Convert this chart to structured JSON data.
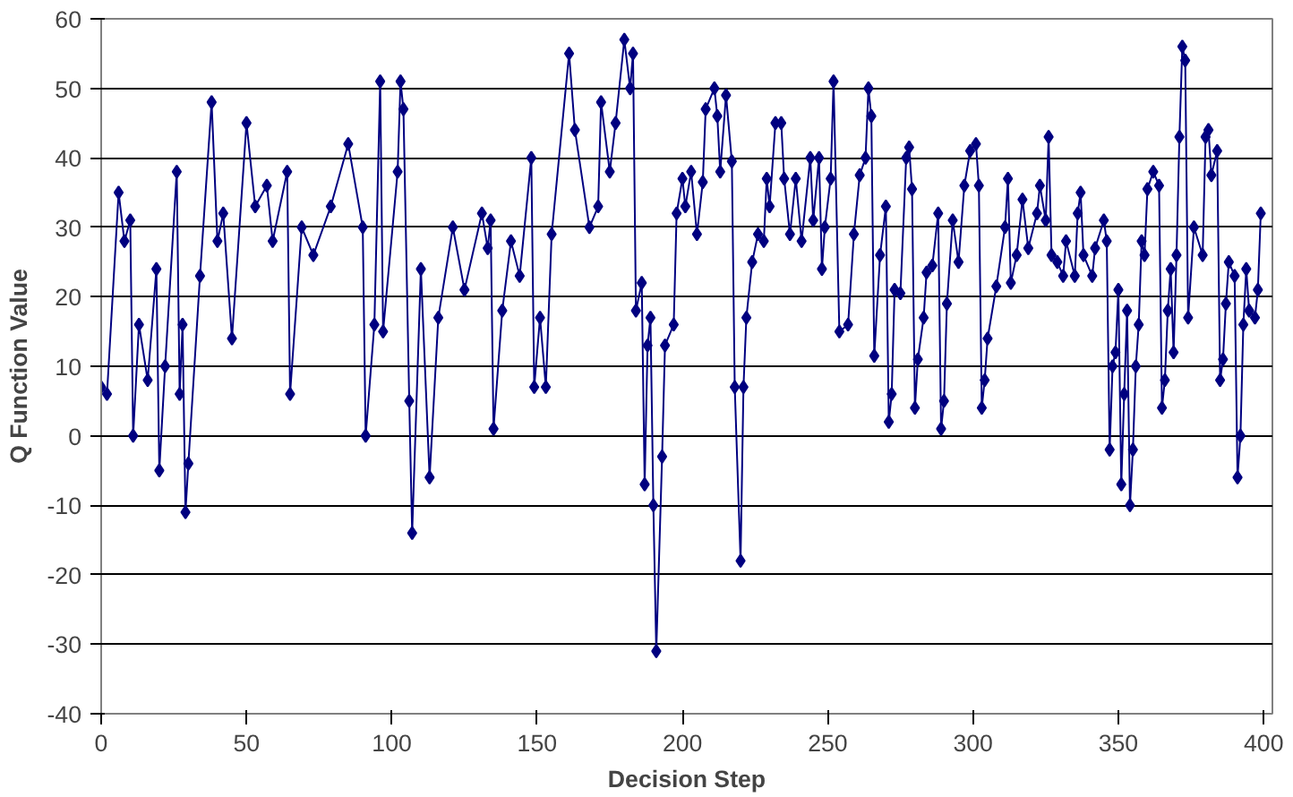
{
  "chart_data": {
    "type": "line",
    "xlabel": "Decision Step",
    "ylabel": "Q Function Value",
    "xlim": [
      0,
      403
    ],
    "ylim": [
      -40,
      60
    ],
    "xticks": [
      0,
      50,
      100,
      150,
      200,
      250,
      300,
      350,
      400
    ],
    "yticks": [
      -40,
      -30,
      -20,
      -10,
      0,
      10,
      20,
      30,
      40,
      50,
      60
    ],
    "grid": "y",
    "marker": "diamond",
    "line_style": "solid",
    "series": [
      {
        "color": "#000080",
        "x": [
          0,
          2,
          6,
          8,
          10,
          11,
          13,
          16,
          19,
          20,
          22,
          26,
          27,
          28,
          29,
          30,
          34,
          38,
          40,
          42,
          45,
          50,
          53,
          57,
          59,
          64,
          65,
          69,
          73,
          79,
          85,
          90,
          91,
          94,
          96,
          97,
          102,
          103,
          104,
          106,
          107,
          110,
          113,
          116,
          121,
          125,
          131,
          133,
          134,
          135,
          138,
          141,
          144,
          148,
          149,
          151,
          153,
          155,
          161,
          163,
          168,
          171,
          172,
          175,
          177,
          180,
          182,
          183,
          184,
          186,
          187,
          188,
          189,
          190,
          191,
          193,
          194,
          197,
          198,
          200,
          201,
          203,
          205,
          207,
          208,
          211,
          212,
          213,
          215,
          217,
          218,
          220,
          221,
          222,
          224,
          226,
          228,
          229,
          230,
          232,
          234,
          235,
          237,
          239,
          241,
          244,
          245,
          247,
          248,
          249,
          251,
          252,
          254,
          257,
          259,
          261,
          263,
          264,
          265,
          266,
          268,
          270,
          271,
          272,
          273,
          275,
          277,
          278,
          279,
          280,
          281,
          283,
          284,
          286,
          288,
          289,
          290,
          291,
          293,
          295,
          297,
          299,
          301,
          302,
          303,
          304,
          305,
          308,
          311,
          312,
          313,
          315,
          317,
          319,
          322,
          323,
          325,
          326,
          327,
          329,
          331,
          332,
          335,
          336,
          337,
          338,
          341,
          342,
          345,
          346,
          347,
          348,
          349,
          350,
          351,
          352,
          353,
          354,
          355,
          356,
          357,
          358,
          359,
          360,
          362,
          364,
          365,
          366,
          367,
          368,
          369,
          370,
          371,
          372,
          373,
          374,
          376,
          379,
          380,
          381,
          382,
          384,
          385,
          386,
          387,
          388,
          390,
          391,
          392,
          393,
          394,
          395,
          397,
          398,
          399
        ],
        "values": [
          7,
          6,
          35,
          28,
          31,
          0,
          16,
          8,
          24,
          -5,
          10,
          38,
          6,
          16,
          -11,
          -4,
          23,
          48,
          28,
          32,
          14,
          45,
          33,
          36,
          28,
          38,
          6,
          30,
          26,
          33,
          42,
          30,
          0,
          16,
          51,
          15,
          38,
          51,
          47,
          5,
          -14,
          24,
          -6,
          17,
          30,
          21,
          32,
          27,
          31,
          1,
          18,
          28,
          23,
          40,
          7,
          17,
          7,
          29,
          55,
          44,
          30,
          33,
          48,
          38,
          45,
          57,
          50,
          55,
          18,
          22,
          -7,
          13,
          17,
          -10,
          -31,
          -3,
          13,
          16,
          32,
          37,
          33,
          38,
          29,
          36.5,
          47,
          50,
          46,
          38,
          49,
          39.5,
          7,
          -18,
          7,
          17,
          25,
          29,
          28,
          37,
          33,
          45,
          45,
          37,
          29,
          37,
          28,
          40,
          31,
          40,
          24,
          30,
          37,
          51,
          15,
          16,
          29,
          37.5,
          40,
          50,
          46,
          11.5,
          26,
          33,
          2,
          6,
          21,
          20.5,
          40,
          41.5,
          35.5,
          4,
          11,
          17,
          23.5,
          24.5,
          32,
          1,
          5,
          19,
          31,
          25,
          36,
          41,
          42,
          36,
          4,
          8,
          14,
          21.5,
          30,
          37,
          22,
          26,
          34,
          27,
          32,
          36,
          31,
          43,
          26,
          25,
          23,
          28,
          23,
          32,
          35,
          26,
          23,
          27,
          31,
          28,
          -2,
          10,
          12,
          21,
          -7,
          6,
          18,
          -10,
          -2,
          10,
          16,
          28,
          26,
          35.5,
          38,
          36,
          4,
          8,
          18,
          24,
          12,
          26,
          43,
          56,
          54,
          17,
          30,
          26,
          43,
          44,
          37.5,
          41,
          8,
          11,
          19,
          25,
          23,
          -6,
          0,
          16,
          24,
          18,
          17,
          21,
          32
        ]
      }
    ]
  }
}
